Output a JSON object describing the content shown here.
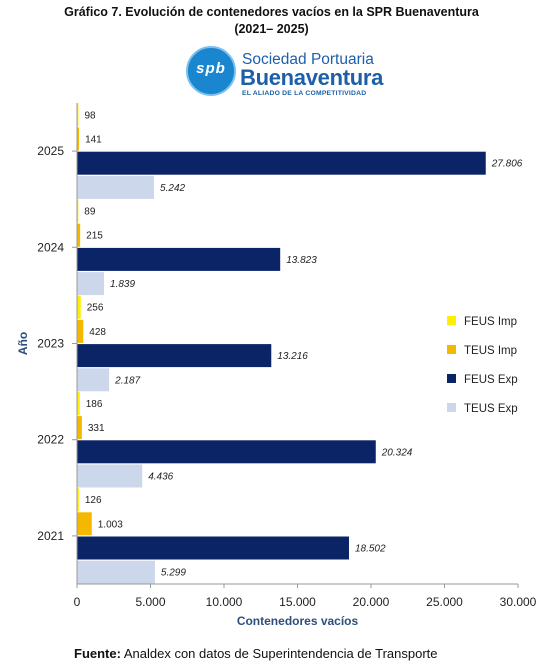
{
  "title_line1": "Gráfico 7. Evolución de contenedores vacíos en la SPR Buenaventura",
  "title_line2": "(2021– 2025)",
  "logo": {
    "letters": "spb",
    "line1": "Sociedad Portuaria",
    "line2": "Buenaventura",
    "line3": "EL ALIADO DE LA COMPETITIVIDAD"
  },
  "source": {
    "label": "Fuente:",
    "text": " Analdex con datos de Superintendencia de Transporte"
  },
  "chart_data": {
    "type": "bar",
    "orientation": "horizontal",
    "categories": [
      "2021",
      "2022",
      "2023",
      "2024",
      "2025"
    ],
    "xlabel": "Contenedores vacíos",
    "ylabel": "Año",
    "xlim": [
      0,
      30000
    ],
    "xticks": [
      0,
      5000,
      10000,
      15000,
      20000,
      25000,
      30000
    ],
    "xtick_labels": [
      "0",
      "5.000",
      "10.000",
      "15.000",
      "20.000",
      "25.000",
      "30.000"
    ],
    "grid": false,
    "legend_position": "right",
    "series": [
      {
        "name": "FEUS Imp",
        "color": "#ffee00",
        "values": [
          126,
          186,
          256,
          89,
          98
        ],
        "labels": [
          "126",
          "186",
          "256",
          "89",
          "98"
        ],
        "label_italic": false
      },
      {
        "name": "TEUS Imp",
        "color": "#f5b800",
        "values": [
          1003,
          331,
          428,
          215,
          141
        ],
        "labels": [
          "1.003",
          "331",
          "428",
          "215",
          "141"
        ],
        "label_italic": false
      },
      {
        "name": "FEUS Exp",
        "color": "#0b2466",
        "values": [
          18502,
          20324,
          13216,
          13823,
          27806
        ],
        "labels": [
          "18.502",
          "20.324",
          "13.216",
          "13.823",
          "27.806"
        ],
        "label_italic": true
      },
      {
        "name": "TEUS Exp",
        "color": "#cdd7ec",
        "values": [
          5299,
          4436,
          2187,
          1839,
          5242
        ],
        "labels": [
          "5.299",
          "4.436",
          "2.187",
          "1.839",
          "5.242"
        ],
        "label_italic": true
      }
    ]
  }
}
